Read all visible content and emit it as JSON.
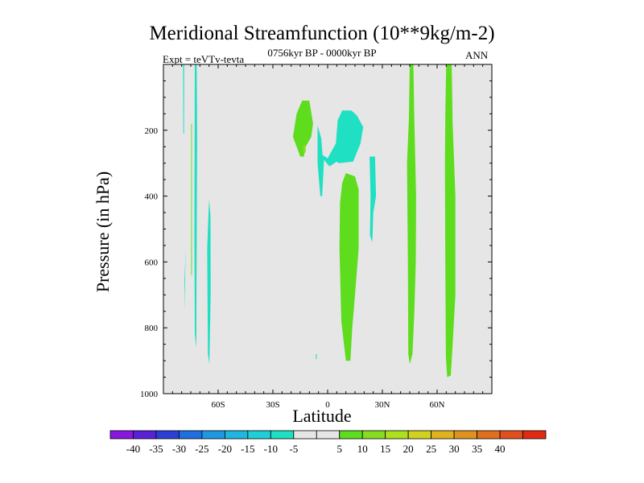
{
  "chart_data": {
    "type": "contour",
    "title": "Meridional Streamfunction (10**9kg/m-2)",
    "subtitle_left": "Expt = teVTv-tevta",
    "subtitle_center": "0756kyr BP - 0000kyr BP",
    "subtitle_right": "ANN",
    "xlabel": "Latitude",
    "ylabel": "Pressure (in hPa)",
    "xlim": [
      -90,
      90
    ],
    "ylim": [
      1000,
      0
    ],
    "x_ticks": [
      {
        "value": -60,
        "label": "60S"
      },
      {
        "value": -30,
        "label": "30S"
      },
      {
        "value": 0,
        "label": "0"
      },
      {
        "value": 30,
        "label": "30N"
      },
      {
        "value": 60,
        "label": "60N"
      }
    ],
    "y_ticks": [
      {
        "value": 200,
        "label": "200"
      },
      {
        "value": 400,
        "label": "400"
      },
      {
        "value": 600,
        "label": "600"
      },
      {
        "value": 800,
        "label": "800"
      },
      {
        "value": 1000,
        "label": "1000"
      }
    ],
    "background_color": "#e6e6e6",
    "colorbar": {
      "colors": [
        "#8a17e0",
        "#5a1fd8",
        "#2b3fd6",
        "#1f6fe0",
        "#1f98e2",
        "#1fb7e0",
        "#1fcfd8",
        "#1fe0c2",
        "#e6e6e6",
        "#e6e6e6",
        "#5edc1e",
        "#86dc1e",
        "#afe01e",
        "#d2d21e",
        "#e0b31e",
        "#e0921e",
        "#e06e1e",
        "#e0501e",
        "#e02a14"
      ],
      "levels": [
        -40,
        -35,
        -30,
        -25,
        -20,
        -15,
        -10,
        -5,
        0,
        5,
        10,
        15,
        20,
        25,
        30,
        35,
        40
      ],
      "labels": [
        "-40",
        "-35",
        "-30",
        "-25",
        "-20",
        "-15",
        "-10",
        "-5",
        "5",
        "10",
        "15",
        "20",
        "25",
        "30",
        "35",
        "40"
      ]
    },
    "regions": [
      {
        "name": "sh-column-a",
        "value": -7,
        "color": "#1fe0c2",
        "points": [
          [
            -78.5,
            750
          ],
          [
            -78,
            620
          ],
          [
            -77.8,
            560
          ],
          [
            -78.5,
            660
          ]
        ]
      },
      {
        "name": "sh-upper-streak-1",
        "value": -7,
        "color": "#1fe0c2",
        "points": [
          [
            -79.2,
            0
          ],
          [
            -78.6,
            0
          ],
          [
            -78.7,
            210
          ],
          [
            -79.1,
            210
          ]
        ]
      },
      {
        "name": "sh-upper-streak-2",
        "value": -7,
        "color": "#1fe0c2",
        "points": [
          [
            -72.8,
            0
          ],
          [
            -71.8,
            0
          ],
          [
            -71.5,
            220
          ],
          [
            -72,
            860
          ],
          [
            -72.8,
            820
          ],
          [
            -73,
            500
          ]
        ]
      },
      {
        "name": "sh-upper-streak-3",
        "value": 7,
        "color": "#5edc1e",
        "points": [
          [
            -74.8,
            180
          ],
          [
            -74.4,
            180
          ],
          [
            -74.4,
            640
          ],
          [
            -74.8,
            640
          ]
        ]
      },
      {
        "name": "sh-column-b",
        "value": -7,
        "color": "#1fe0c2",
        "points": [
          [
            -65,
            410
          ],
          [
            -64.2,
            460
          ],
          [
            -64.1,
            700
          ],
          [
            -64.8,
            910
          ],
          [
            -65.6,
            880
          ],
          [
            -66,
            560
          ]
        ]
      },
      {
        "name": "upper-positive-cell",
        "value": 7,
        "color": "#5edc1e",
        "points": [
          [
            -19,
            220
          ],
          [
            -17,
            150
          ],
          [
            -14,
            110
          ],
          [
            -10,
            110
          ],
          [
            -8,
            180
          ],
          [
            -9,
            220
          ],
          [
            -12,
            250
          ],
          [
            -13,
            280
          ],
          [
            -15,
            280
          ],
          [
            -17,
            250
          ]
        ]
      },
      {
        "name": "upper-positive-core",
        "value": 12,
        "color": "#86dc1e",
        "points": [
          [
            -13.5,
            250
          ],
          [
            -12.2,
            240
          ],
          [
            -12,
            265
          ],
          [
            -13.3,
            275
          ]
        ]
      },
      {
        "name": "upper-negative-cell",
        "value": -7,
        "color": "#1fe0c2",
        "points": [
          [
            -5.5,
            185
          ],
          [
            -3.5,
            225
          ],
          [
            -2.8,
            275
          ],
          [
            0,
            285
          ],
          [
            4.5,
            240
          ],
          [
            5.5,
            170
          ],
          [
            8,
            140
          ],
          [
            13,
            140
          ],
          [
            16,
            155
          ],
          [
            19.5,
            190
          ],
          [
            18,
            240
          ],
          [
            14,
            295
          ],
          [
            6,
            300
          ],
          [
            5,
            295
          ],
          [
            1,
            310
          ],
          [
            -2,
            290
          ],
          [
            -3,
            400
          ],
          [
            -4,
            400
          ],
          [
            -5.5,
            300
          ]
        ]
      },
      {
        "name": "tropical-positive-column",
        "value": 7,
        "color": "#5edc1e",
        "points": [
          [
            8,
            360
          ],
          [
            10,
            330
          ],
          [
            15,
            340
          ],
          [
            17,
            380
          ],
          [
            17,
            560
          ],
          [
            15,
            700
          ],
          [
            13.5,
            800
          ],
          [
            12.5,
            900
          ],
          [
            10,
            900
          ],
          [
            7.5,
            780
          ],
          [
            6.5,
            560
          ],
          [
            6.8,
            420
          ]
        ]
      },
      {
        "name": "tropical-negative-column",
        "value": -7,
        "color": "#1fe0c2",
        "points": [
          [
            23,
            280
          ],
          [
            26,
            280
          ],
          [
            26.5,
            400
          ],
          [
            25,
            450
          ],
          [
            24.5,
            540
          ],
          [
            23.2,
            520
          ],
          [
            23.5,
            400
          ]
        ]
      },
      {
        "name": "nh-column-a",
        "value": 7,
        "color": "#5edc1e",
        "points": [
          [
            45,
            0
          ],
          [
            47,
            0
          ],
          [
            47.5,
            170
          ],
          [
            48.5,
            400
          ],
          [
            48.3,
            600
          ],
          [
            47.5,
            750
          ],
          [
            46.5,
            880
          ],
          [
            45,
            910
          ],
          [
            44.2,
            880
          ],
          [
            44,
            600
          ],
          [
            43.5,
            300
          ],
          [
            44.5,
            170
          ]
        ]
      },
      {
        "name": "nh-column-b",
        "value": 7,
        "color": "#5edc1e",
        "points": [
          [
            65,
            0
          ],
          [
            68,
            0
          ],
          [
            68.5,
            180
          ],
          [
            70,
            400
          ],
          [
            70,
            700
          ],
          [
            68.5,
            850
          ],
          [
            67.5,
            945
          ],
          [
            65.5,
            950
          ],
          [
            64.8,
            890
          ],
          [
            64.5,
            600
          ],
          [
            64.3,
            300
          ],
          [
            64.5,
            150
          ]
        ]
      },
      {
        "name": "equator-speck",
        "value": -7,
        "color": "#1fe0c2",
        "points": [
          [
            -6.5,
            880
          ],
          [
            -6,
            880
          ],
          [
            -6,
            895
          ],
          [
            -6.5,
            895
          ]
        ]
      }
    ]
  }
}
